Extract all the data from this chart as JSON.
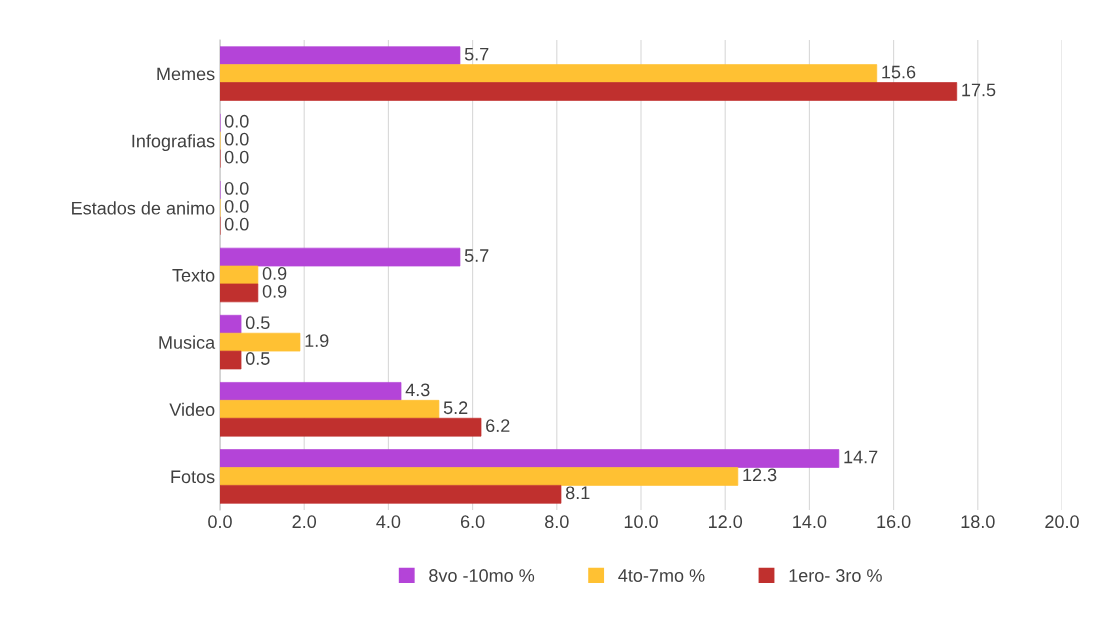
{
  "chart_data": {
    "type": "bar",
    "orientation": "horizontal",
    "categories": [
      "Memes",
      "Infografias",
      "Estados de animo",
      "Texto",
      "Musica",
      "Video",
      "Fotos"
    ],
    "series": [
      {
        "name": "8vo -10mo %",
        "color": "#b444d8",
        "values": [
          5.7,
          0,
          0,
          5.7,
          0.5,
          4.3,
          14.7
        ],
        "value_labels": [
          "5.7",
          "0.0",
          "0.0",
          "5.7",
          "0.5",
          "4.3",
          "14.7"
        ]
      },
      {
        "name": "4to-7mo %",
        "color": "#ffc133",
        "values": [
          15.6,
          0,
          0,
          0.9,
          1.9,
          5.2,
          12.3
        ],
        "value_labels": [
          "15.6",
          "0.0",
          "0.0",
          "0.9",
          "1.9",
          "5.2",
          "12.3"
        ]
      },
      {
        "name": "1ero- 3ro %",
        "color": "#c0302e",
        "values": [
          17.5,
          0,
          0,
          0.9,
          0.5,
          6.2,
          8.1
        ],
        "value_labels": [
          "17.5",
          "0.0",
          "0.0",
          "0.9",
          "0.5",
          "6.2",
          "8.1"
        ]
      }
    ],
    "xlim": [
      0,
      20
    ],
    "xticks": [
      {
        "value": 0,
        "label": "0.0"
      },
      {
        "value": 2,
        "label": "2.0"
      },
      {
        "value": 4,
        "label": "4.0"
      },
      {
        "value": 6,
        "label": "6.0"
      },
      {
        "value": 8,
        "label": "8.0"
      },
      {
        "value": 10,
        "label": "10.0"
      },
      {
        "value": 12,
        "label": "12.0"
      },
      {
        "value": 14,
        "label": "14.0"
      },
      {
        "value": 16,
        "label": "16.0"
      },
      {
        "value": 18,
        "label": "18.0"
      },
      {
        "value": 20,
        "label": "20.0"
      }
    ],
    "grid": "x",
    "legend": "bottom"
  }
}
